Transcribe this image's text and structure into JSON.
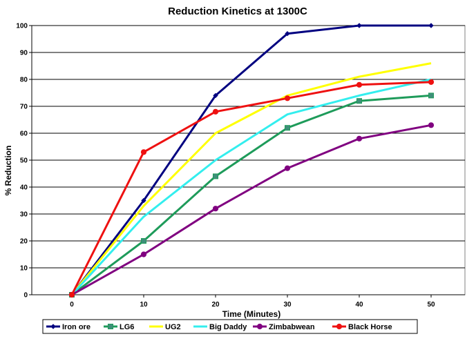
{
  "chart_data": {
    "type": "line",
    "title": "Reduction Kinetics at 1300C",
    "xlabel": "Time (Minutes)",
    "ylabel": "% Reduction",
    "x": [
      0,
      10,
      20,
      30,
      40,
      50
    ],
    "x_ticks": [
      "0",
      "10",
      "20",
      "30",
      "40",
      "50"
    ],
    "y_ticks": [
      "0",
      "10",
      "20",
      "30",
      "40",
      "50",
      "60",
      "70",
      "80",
      "90",
      "100"
    ],
    "ylim": [
      0,
      100
    ],
    "grid": "horizontal",
    "legend_position": "bottom",
    "series": [
      {
        "name": "Iron ore",
        "color": "#000080",
        "marker": "diamond",
        "values": [
          0,
          35,
          74,
          97,
          100,
          100
        ]
      },
      {
        "name": "LG6",
        "color": "#1E9B5A",
        "marker": "square",
        "values": [
          0,
          20,
          44,
          62,
          72,
          74
        ]
      },
      {
        "name": "UG2",
        "color": "#FFFF00",
        "marker": "none",
        "values": [
          0,
          33,
          60,
          74,
          81,
          86
        ]
      },
      {
        "name": "Big Daddy",
        "color": "#33EEEE",
        "marker": "none",
        "values": [
          0,
          29,
          50,
          67,
          74,
          80
        ]
      },
      {
        "name": "Zimbabwean",
        "color": "#800080",
        "marker": "circle",
        "values": [
          0,
          15,
          32,
          47,
          58,
          63
        ]
      },
      {
        "name": "Black Horse",
        "color": "#EE1111",
        "marker": "circle",
        "values": [
          0,
          53,
          68,
          73,
          78,
          79
        ]
      }
    ]
  }
}
